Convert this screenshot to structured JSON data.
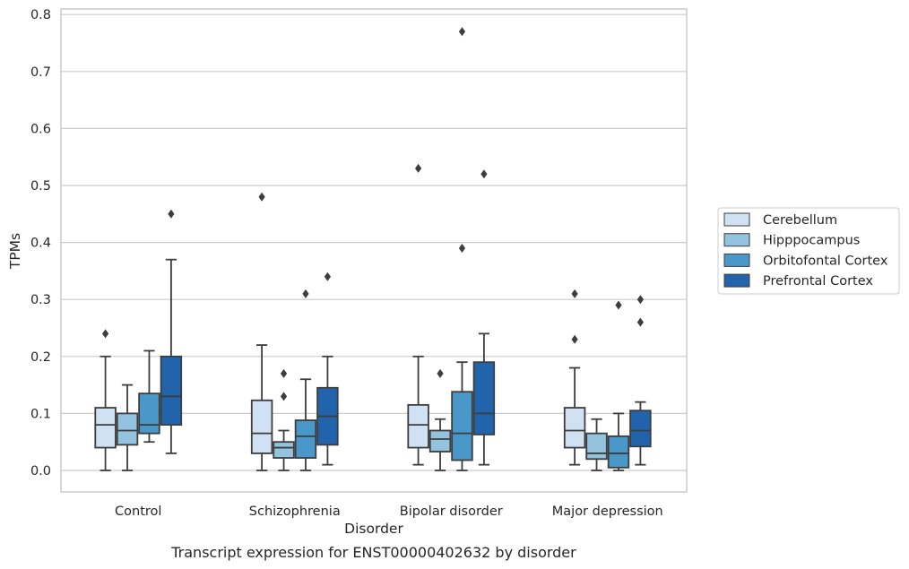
{
  "caption": "Transcript expression for ENST00000402632 by disorder",
  "chart_data": {
    "type": "box",
    "title": "",
    "xlabel": "Disorder",
    "ylabel": "TPMs",
    "ylim": [
      -0.037,
      0.812
    ],
    "yticks": [
      "0.0",
      "0.1",
      "0.2",
      "0.3",
      "0.4",
      "0.5",
      "0.6",
      "0.7",
      "0.8"
    ],
    "ytick_values": [
      0.0,
      0.1,
      0.2,
      0.3,
      0.4,
      0.5,
      0.6,
      0.7,
      0.8
    ],
    "grid": "horizontal",
    "legend_position": "outside-right",
    "categories": [
      "Control",
      "Schizophrenia",
      "Bipolar disorder",
      "Major depression"
    ],
    "series": [
      {
        "name": "Cerebellum",
        "color": "#cfe1f2",
        "boxes": [
          {
            "whislo": 0.0,
            "q1": 0.04,
            "med": 0.08,
            "q3": 0.11,
            "whishi": 0.2,
            "fliers": [
              0.24
            ]
          },
          {
            "whislo": 0.0,
            "q1": 0.03,
            "med": 0.065,
            "q3": 0.123,
            "whishi": 0.22,
            "fliers": [
              0.48
            ]
          },
          {
            "whislo": 0.01,
            "q1": 0.04,
            "med": 0.08,
            "q3": 0.115,
            "whishi": 0.2,
            "fliers": [
              0.53
            ]
          },
          {
            "whislo": 0.01,
            "q1": 0.04,
            "med": 0.07,
            "q3": 0.11,
            "whishi": 0.18,
            "fliers": [
              0.23,
              0.31
            ]
          }
        ]
      },
      {
        "name": "Hipppocampus",
        "color": "#93c3df",
        "boxes": [
          {
            "whislo": 0.0,
            "q1": 0.045,
            "med": 0.07,
            "q3": 0.1,
            "whishi": 0.15,
            "fliers": []
          },
          {
            "whislo": 0.0,
            "q1": 0.022,
            "med": 0.04,
            "q3": 0.05,
            "whishi": 0.07,
            "fliers": [
              0.13,
              0.17
            ]
          },
          {
            "whislo": 0.0,
            "q1": 0.033,
            "med": 0.055,
            "q3": 0.07,
            "whishi": 0.09,
            "fliers": [
              0.17
            ]
          },
          {
            "whislo": 0.0,
            "q1": 0.02,
            "med": 0.03,
            "q3": 0.065,
            "whishi": 0.09,
            "fliers": []
          }
        ]
      },
      {
        "name": "Orbitofontal Cortex",
        "color": "#4a98c9",
        "boxes": [
          {
            "whislo": 0.05,
            "q1": 0.065,
            "med": 0.08,
            "q3": 0.135,
            "whishi": 0.21,
            "fliers": []
          },
          {
            "whislo": 0.0,
            "q1": 0.022,
            "med": 0.06,
            "q3": 0.088,
            "whishi": 0.16,
            "fliers": [
              0.31
            ]
          },
          {
            "whislo": 0.0,
            "q1": 0.018,
            "med": 0.065,
            "q3": 0.138,
            "whishi": 0.19,
            "fliers": [
              0.39,
              0.77
            ]
          },
          {
            "whislo": 0.0,
            "q1": 0.005,
            "med": 0.03,
            "q3": 0.06,
            "whishi": 0.1,
            "fliers": [
              0.29
            ]
          }
        ]
      },
      {
        "name": "Prefrontal Cortex",
        "color": "#2164ab",
        "boxes": [
          {
            "whislo": 0.03,
            "q1": 0.08,
            "med": 0.13,
            "q3": 0.2,
            "whishi": 0.37,
            "fliers": [
              0.45
            ]
          },
          {
            "whislo": 0.01,
            "q1": 0.045,
            "med": 0.095,
            "q3": 0.145,
            "whishi": 0.2,
            "fliers": [
              0.34
            ]
          },
          {
            "whislo": 0.01,
            "q1": 0.063,
            "med": 0.1,
            "q3": 0.19,
            "whishi": 0.24,
            "fliers": [
              0.52
            ]
          },
          {
            "whislo": 0.01,
            "q1": 0.042,
            "med": 0.07,
            "q3": 0.105,
            "whishi": 0.12,
            "fliers": [
              0.26,
              0.3
            ]
          }
        ]
      }
    ]
  }
}
